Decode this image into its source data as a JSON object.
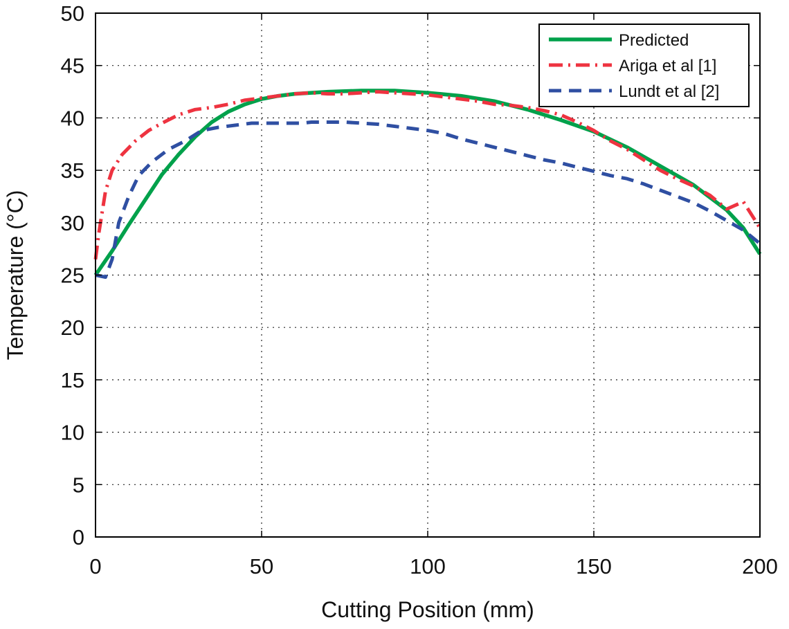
{
  "chart_data": {
    "type": "line",
    "title": "",
    "xlabel": "Cutting Position (mm)",
    "ylabel": "Temperature (°C)",
    "xlim": [
      0,
      200
    ],
    "ylim": [
      0,
      50
    ],
    "xticks": [
      0,
      50,
      100,
      150,
      200
    ],
    "yticks": [
      0,
      5,
      10,
      15,
      20,
      25,
      30,
      35,
      40,
      45,
      50
    ],
    "grid": true,
    "legend_position": "top-right",
    "series": [
      {
        "name": "Predicted",
        "color": "#00a14b",
        "style": "solid",
        "points": [
          [
            0,
            25
          ],
          [
            5,
            27.3
          ],
          [
            10,
            29.8
          ],
          [
            15,
            32.2
          ],
          [
            20,
            34.6
          ],
          [
            25,
            36.5
          ],
          [
            30,
            38.2
          ],
          [
            35,
            39.6
          ],
          [
            40,
            40.6
          ],
          [
            45,
            41.3
          ],
          [
            50,
            41.8
          ],
          [
            55,
            42.1
          ],
          [
            60,
            42.3
          ],
          [
            70,
            42.5
          ],
          [
            80,
            42.6
          ],
          [
            90,
            42.6
          ],
          [
            100,
            42.4
          ],
          [
            110,
            42.1
          ],
          [
            120,
            41.6
          ],
          [
            130,
            40.8
          ],
          [
            140,
            39.8
          ],
          [
            150,
            38.7
          ],
          [
            160,
            37.2
          ],
          [
            170,
            35.4
          ],
          [
            180,
            33.6
          ],
          [
            190,
            31.2
          ],
          [
            195,
            29.5
          ],
          [
            200,
            27
          ]
        ]
      },
      {
        "name": "Ariga et al [1]",
        "color": "#ee3340",
        "style": "dash-dot",
        "points": [
          [
            0,
            26.5
          ],
          [
            1,
            29
          ],
          [
            3,
            33
          ],
          [
            5,
            35
          ],
          [
            8,
            36.5
          ],
          [
            12,
            37.8
          ],
          [
            16,
            38.8
          ],
          [
            20,
            39.5
          ],
          [
            25,
            40.3
          ],
          [
            30,
            40.8
          ],
          [
            35,
            41
          ],
          [
            40,
            41.3
          ],
          [
            45,
            41.7
          ],
          [
            50,
            41.9
          ],
          [
            55,
            42.1
          ],
          [
            60,
            42.3
          ],
          [
            65,
            42.4
          ],
          [
            70,
            42.3
          ],
          [
            75,
            42.3
          ],
          [
            80,
            42.4
          ],
          [
            85,
            42.5
          ],
          [
            90,
            42.4
          ],
          [
            95,
            42.3
          ],
          [
            100,
            42.2
          ],
          [
            105,
            42
          ],
          [
            110,
            41.8
          ],
          [
            115,
            41.6
          ],
          [
            120,
            41.3
          ],
          [
            125,
            41.2
          ],
          [
            130,
            41
          ],
          [
            135,
            40.7
          ],
          [
            140,
            40.3
          ],
          [
            145,
            39.6
          ],
          [
            150,
            38.8
          ],
          [
            155,
            37.8
          ],
          [
            160,
            37
          ],
          [
            165,
            36
          ],
          [
            170,
            35
          ],
          [
            175,
            34.2
          ],
          [
            180,
            33.5
          ],
          [
            185,
            32.6
          ],
          [
            190,
            31.3
          ],
          [
            195,
            32
          ],
          [
            200,
            29.5
          ]
        ]
      },
      {
        "name": "Lundt et al [2]",
        "color": "#2f4fa2",
        "style": "dashed",
        "points": [
          [
            0,
            25
          ],
          [
            3,
            24.8
          ],
          [
            5,
            26.5
          ],
          [
            7,
            30
          ],
          [
            10,
            32.5
          ],
          [
            13,
            34.5
          ],
          [
            17,
            35.8
          ],
          [
            22,
            37
          ],
          [
            27,
            37.8
          ],
          [
            32,
            38.8
          ],
          [
            37,
            39.1
          ],
          [
            42,
            39.3
          ],
          [
            47,
            39.5
          ],
          [
            55,
            39.5
          ],
          [
            62,
            39.5
          ],
          [
            65,
            39.6
          ],
          [
            70,
            39.6
          ],
          [
            75,
            39.6
          ],
          [
            80,
            39.5
          ],
          [
            85,
            39.4
          ],
          [
            90,
            39.2
          ],
          [
            95,
            39
          ],
          [
            100,
            38.8
          ],
          [
            105,
            38.5
          ],
          [
            110,
            38
          ],
          [
            115,
            37.6
          ],
          [
            120,
            37.2
          ],
          [
            125,
            36.8
          ],
          [
            130,
            36.4
          ],
          [
            135,
            36
          ],
          [
            140,
            35.7
          ],
          [
            145,
            35.3
          ],
          [
            150,
            34.9
          ],
          [
            155,
            34.5
          ],
          [
            160,
            34.2
          ],
          [
            165,
            33.7
          ],
          [
            170,
            33.1
          ],
          [
            175,
            32.5
          ],
          [
            180,
            31.9
          ],
          [
            185,
            31.1
          ],
          [
            190,
            30.2
          ],
          [
            195,
            29.3
          ],
          [
            200,
            28
          ]
        ]
      }
    ]
  }
}
